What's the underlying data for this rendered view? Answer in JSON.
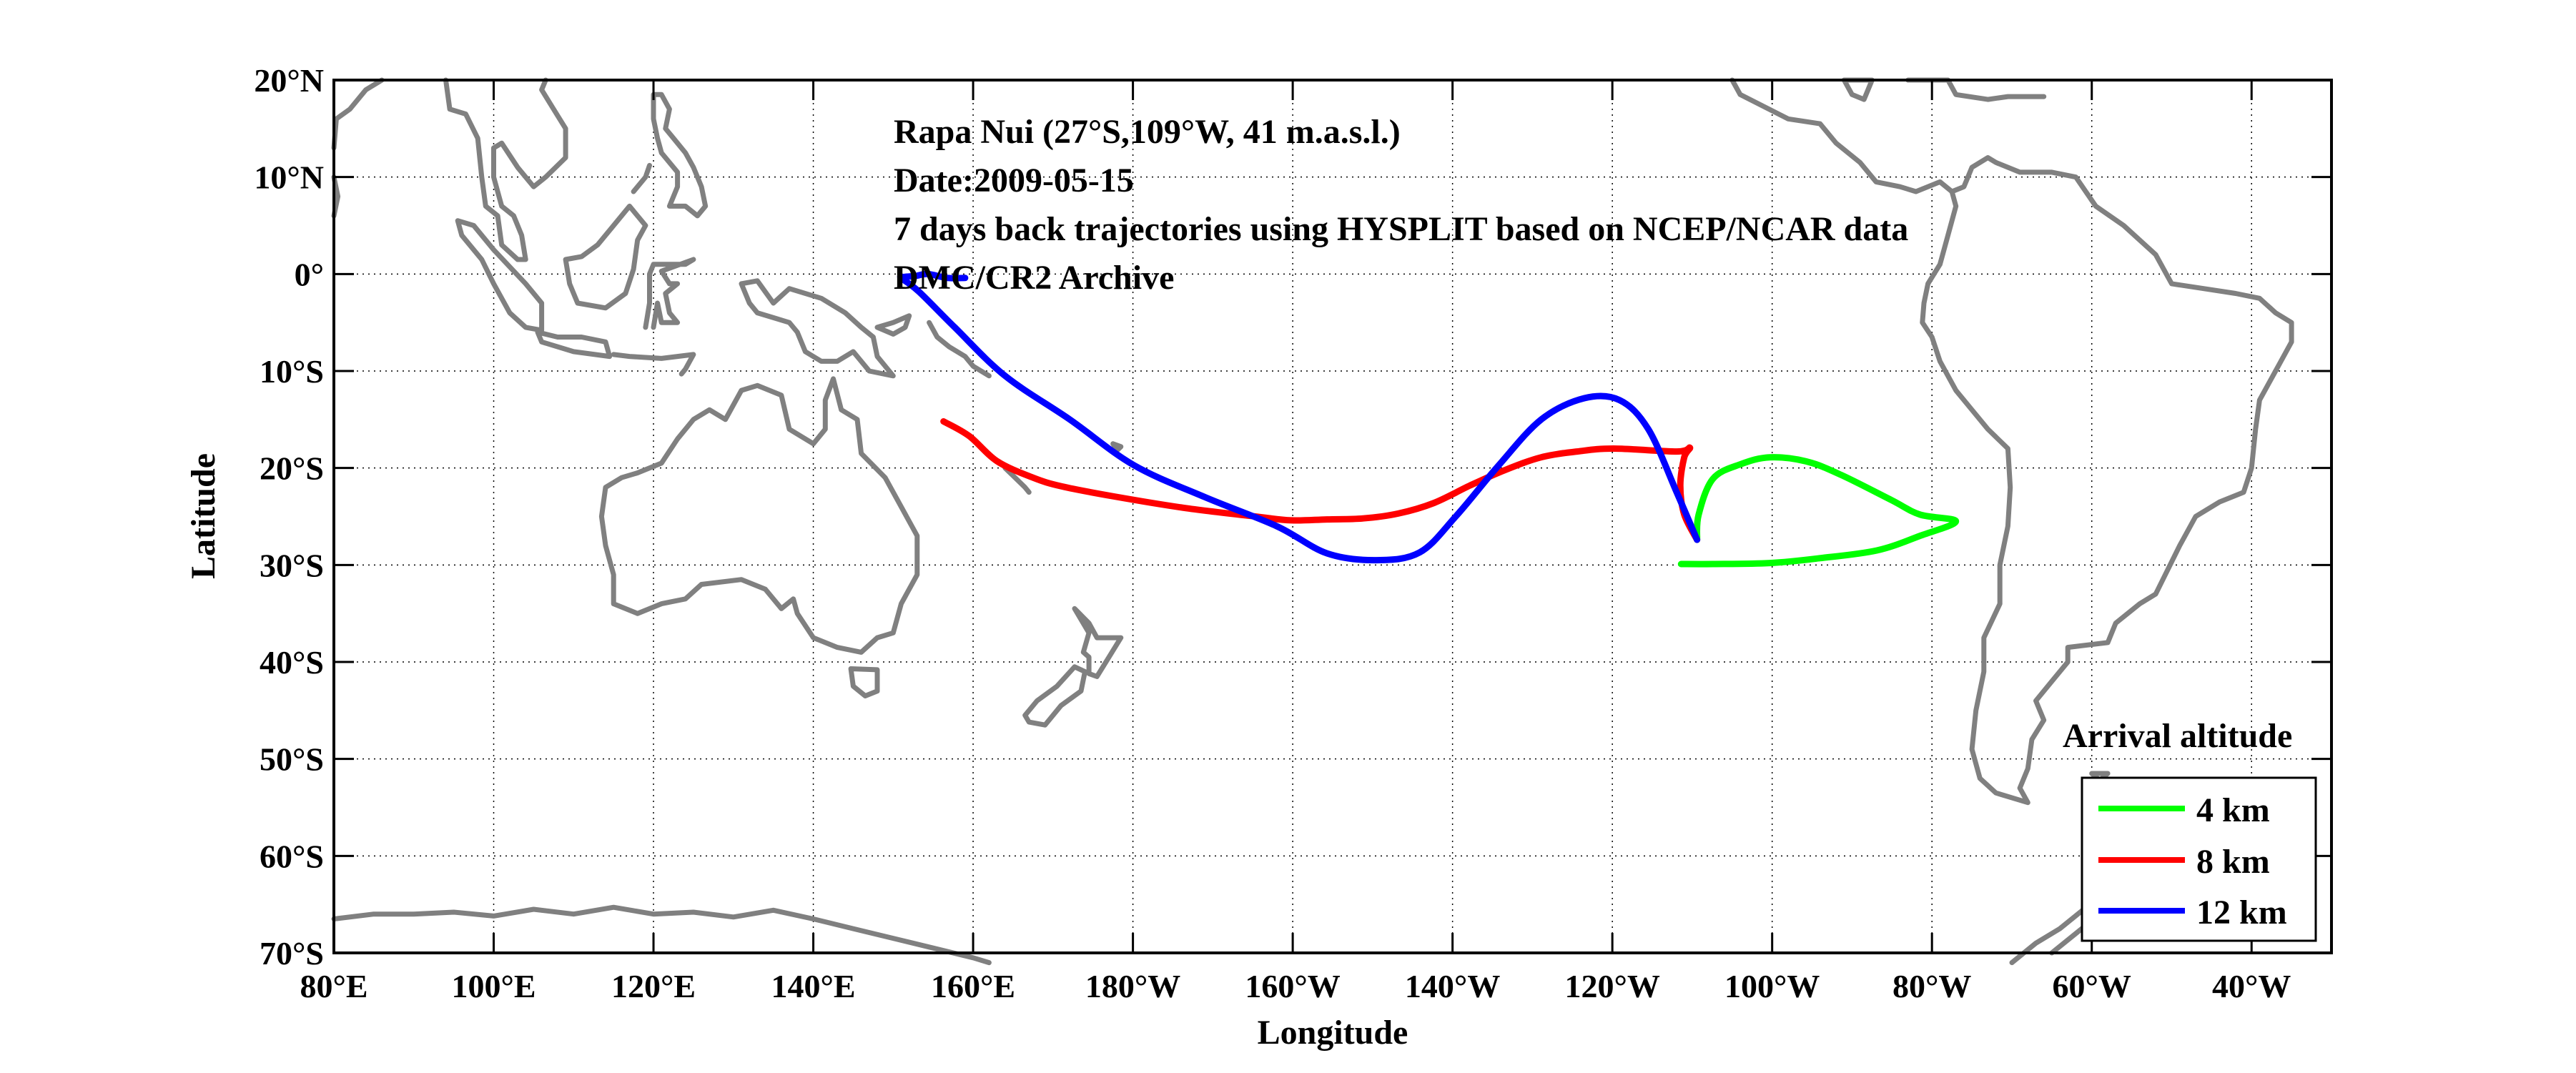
{
  "chart_data": {
    "type": "line",
    "subtype": "map-trajectories",
    "title_lines": [
      "Rapa Nui (27°S,109°W, 41 m.a.s.l.)",
      "Date:2009-05-15",
      "7 days back trajectories using HYSPLIT based on NCEP/NCAR data",
      "DMC/CR2 Archive"
    ],
    "xlabel": "Longitude",
    "ylabel": "Latitude",
    "xlim_deg_east": [
      80,
      330
    ],
    "ylim": [
      -70,
      20
    ],
    "grid": true,
    "x_ticks": [
      {
        "value": 80,
        "label": "80°E"
      },
      {
        "value": 100,
        "label": "100°E"
      },
      {
        "value": 120,
        "label": "120°E"
      },
      {
        "value": 140,
        "label": "140°E"
      },
      {
        "value": 160,
        "label": "160°E"
      },
      {
        "value": 180,
        "label": "180°W"
      },
      {
        "value": 200,
        "label": "160°W"
      },
      {
        "value": 220,
        "label": "140°W"
      },
      {
        "value": 240,
        "label": "120°W"
      },
      {
        "value": 260,
        "label": "100°W"
      },
      {
        "value": 280,
        "label": "80°W"
      },
      {
        "value": 300,
        "label": "60°W"
      },
      {
        "value": 320,
        "label": "40°W"
      }
    ],
    "y_ticks": [
      {
        "value": 20,
        "label": "20°N"
      },
      {
        "value": 10,
        "label": "10°N"
      },
      {
        "value": 0,
        "label": "0°"
      },
      {
        "value": -10,
        "label": "10°S"
      },
      {
        "value": -20,
        "label": "20°S"
      },
      {
        "value": -30,
        "label": "30°S"
      },
      {
        "value": -40,
        "label": "40°S"
      },
      {
        "value": -50,
        "label": "50°S"
      },
      {
        "value": -60,
        "label": "60°S"
      },
      {
        "value": -70,
        "label": "70°S"
      }
    ],
    "legend": {
      "title": "Arrival altitude",
      "placement": "bottom-right"
    },
    "series": [
      {
        "name": "4 km",
        "color": "#00ff00",
        "lon_east": [
          160.6,
          160.8,
          162.6,
          166.1,
          169.7,
          174.2,
          178.6,
          184.9,
          188.5,
          193.0,
          188.5,
          183.1,
          176.0,
          169.7,
          162.6,
          158.6
        ],
        "lat": [
          -27.4,
          -24.8,
          -21.1,
          -19.6,
          -18.9,
          -19.3,
          -20.7,
          -23.3,
          -24.8,
          -25.5,
          -27.0,
          -28.5,
          -29.3,
          -29.8,
          -29.9,
          -29.9
        ],
        "lon_offset": 90
      },
      {
        "name": "8 km",
        "color": "#ff0000",
        "lon_east": [
          250.6,
          249.0,
          248.5,
          249.0,
          249.7,
          248.1,
          240.1,
          235.6,
          231.1,
          226.6,
          222.2,
          217.7,
          213.2,
          208.8,
          204.3,
          199.8,
          195.3,
          186.3,
          177.4,
          171.1,
          167.5,
          163.0,
          159.5,
          156.3
        ],
        "lat": [
          -27.4,
          -24.8,
          -21.8,
          -18.9,
          -17.9,
          -18.3,
          -18.0,
          -18.3,
          -18.9,
          -20.2,
          -21.8,
          -23.6,
          -24.7,
          -25.2,
          -25.3,
          -25.4,
          -25.0,
          -24.1,
          -22.9,
          -21.9,
          -21.0,
          -19.3,
          -16.7,
          -15.2
        ]
      },
      {
        "name": "12 km",
        "color": "#0000ff",
        "lon_east": [
          250.6,
          248.1,
          244.5,
          240.9,
          236.5,
          231.1,
          225.7,
          220.4,
          215.9,
          210.5,
          204.3,
          198.0,
          189.0,
          180.1,
          172.1,
          164.0,
          157.7,
          153.2,
          151.0,
          151.4,
          152.8,
          154.3,
          156.8,
          159.0
        ],
        "lat": [
          -27.4,
          -22.6,
          -16.0,
          -13.0,
          -12.8,
          -15.0,
          -19.8,
          -25.0,
          -28.7,
          -29.5,
          -28.8,
          -26.0,
          -23.0,
          -19.7,
          -15.0,
          -10.5,
          -5.5,
          -1.8,
          -0.4,
          -0.3,
          -0.2,
          0.0,
          -0.4,
          -0.4
        ]
      }
    ],
    "site": {
      "name": "Rapa Nui",
      "lat": -27,
      "lon": -109,
      "elevation": "41 m.a.s.l."
    }
  },
  "coastline_color": "#808080"
}
